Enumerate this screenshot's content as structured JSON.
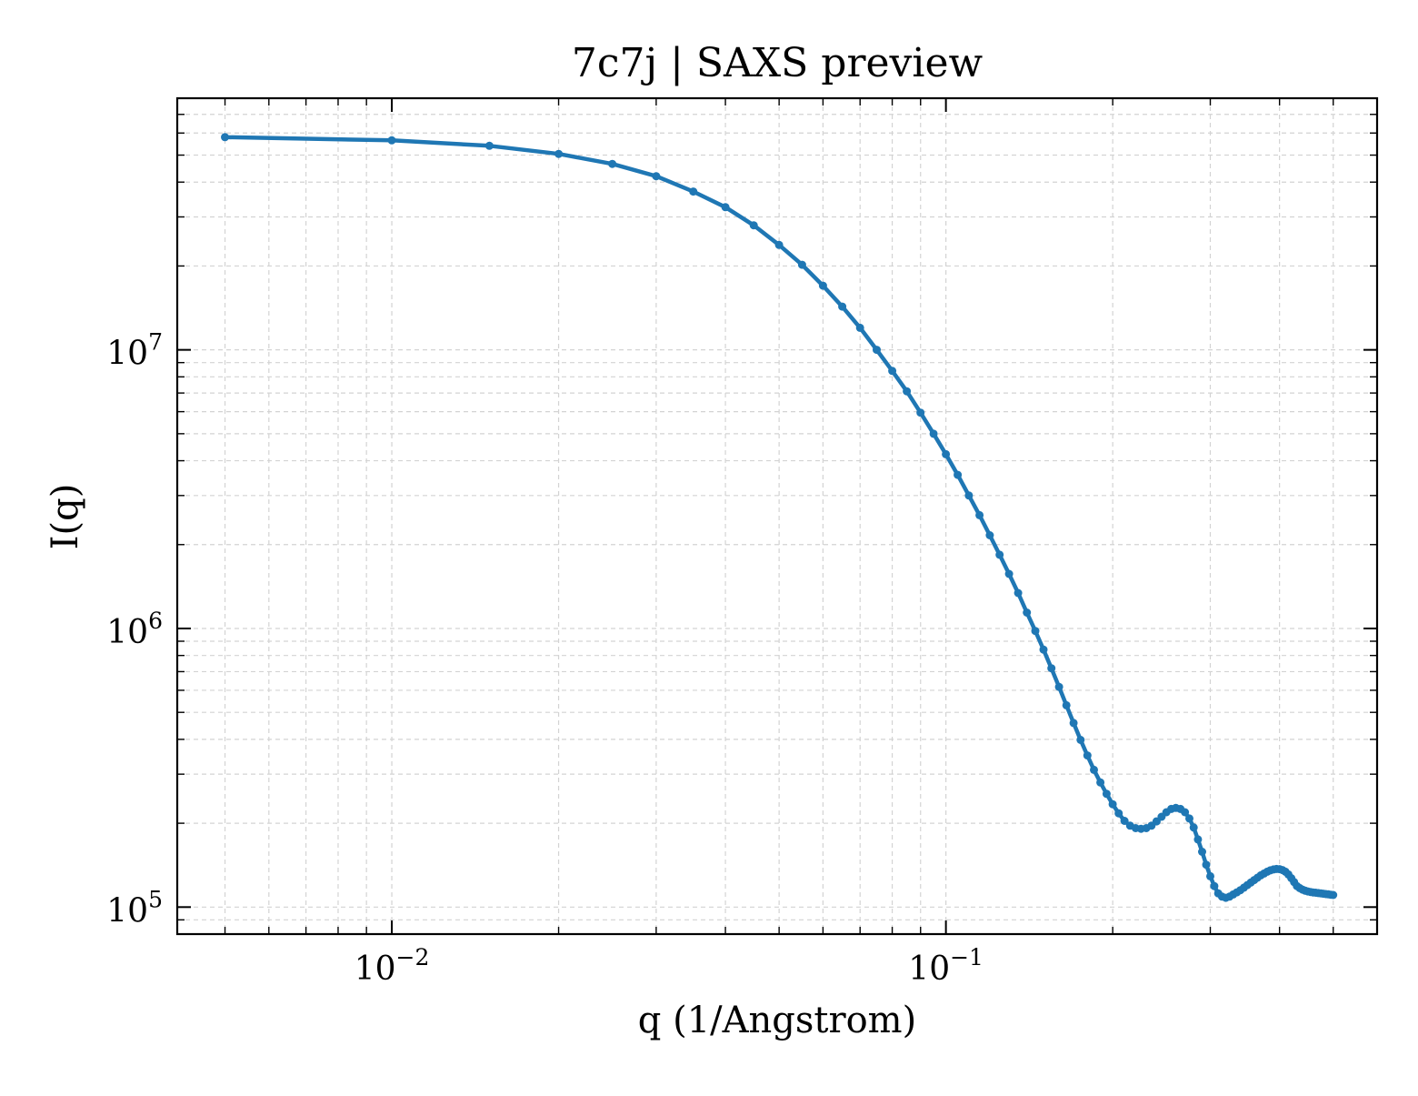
{
  "chart_data": {
    "type": "line",
    "title": "7c7j | SAXS preview",
    "xlabel": "q (1/Angstrom)",
    "ylabel": "I(q)",
    "xscale": "log",
    "yscale": "log",
    "xlim": [
      0.0041,
      0.6
    ],
    "ylim": [
      80000,
      80000000
    ],
    "x_ticks": [
      {
        "value": 0.01,
        "base": "10",
        "exp": "−2"
      },
      {
        "value": 0.1,
        "base": "10",
        "exp": "−1"
      }
    ],
    "y_ticks": [
      {
        "value": 100000,
        "base": "10",
        "exp": "5"
      },
      {
        "value": 1000000,
        "base": "10",
        "exp": "6"
      },
      {
        "value": 10000000,
        "base": "10",
        "exp": "7"
      }
    ],
    "grid": true,
    "legend": "none",
    "color": "#1f77b4",
    "series": [
      {
        "x": [
          0.005,
          0.01,
          0.015,
          0.02,
          0.025,
          0.03,
          0.035,
          0.04,
          0.045,
          0.05,
          0.055,
          0.06,
          0.065,
          0.07,
          0.075,
          0.08,
          0.085,
          0.09,
          0.095,
          0.1,
          0.105,
          0.11,
          0.115,
          0.12,
          0.125,
          0.13,
          0.135,
          0.14,
          0.145,
          0.15,
          0.155,
          0.16,
          0.165,
          0.17,
          0.175,
          0.18,
          0.185,
          0.19,
          0.195,
          0.2,
          0.205,
          0.21,
          0.215,
          0.22,
          0.225,
          0.23,
          0.235,
          0.24,
          0.245,
          0.25,
          0.255,
          0.26,
          0.265,
          0.27,
          0.275,
          0.28,
          0.285,
          0.29,
          0.295,
          0.3,
          0.305,
          0.31,
          0.315,
          0.32,
          0.325,
          0.33,
          0.335,
          0.34,
          0.345,
          0.35,
          0.355,
          0.36,
          0.365,
          0.37,
          0.375,
          0.38,
          0.385,
          0.39,
          0.395,
          0.4,
          0.405,
          0.41,
          0.415,
          0.42,
          0.425,
          0.43,
          0.435,
          0.44,
          0.445,
          0.45,
          0.455,
          0.46,
          0.465,
          0.47,
          0.475,
          0.48,
          0.485,
          0.49,
          0.495,
          0.5
        ],
        "y": [
          58000000,
          56500000,
          54000000,
          50500000,
          46500000,
          42000000,
          37000000,
          32500000,
          28000000,
          23800000,
          20200000,
          17000000,
          14300000,
          12000000,
          10000000,
          8400000,
          7100000,
          5950000,
          5000000,
          4220000,
          3560000,
          3000000,
          2550000,
          2160000,
          1840000,
          1570000,
          1340000,
          1140000,
          980000,
          840000,
          720000,
          617000,
          530000,
          458000,
          398000,
          350000,
          311000,
          280000,
          255000,
          234000,
          217000,
          204000,
          196000,
          192000,
          191000,
          192000,
          196000,
          203000,
          211000,
          219000,
          225000,
          227000,
          225000,
          219000,
          208000,
          193000,
          175000,
          158000,
          142000,
          129000,
          119000,
          112000,
          109000,
          108000,
          109000,
          111000,
          113000,
          115000,
          117500,
          120000,
          122500,
          125000,
          127500,
          130000,
          132000,
          134000,
          135500,
          136500,
          137000,
          136800,
          135800,
          134000,
          131000,
          127000,
          123000,
          119000,
          117000,
          115500,
          114500,
          113800,
          113300,
          112900,
          112600,
          112300,
          112000,
          111700,
          111400,
          111100,
          110800,
          110500
        ]
      }
    ]
  }
}
